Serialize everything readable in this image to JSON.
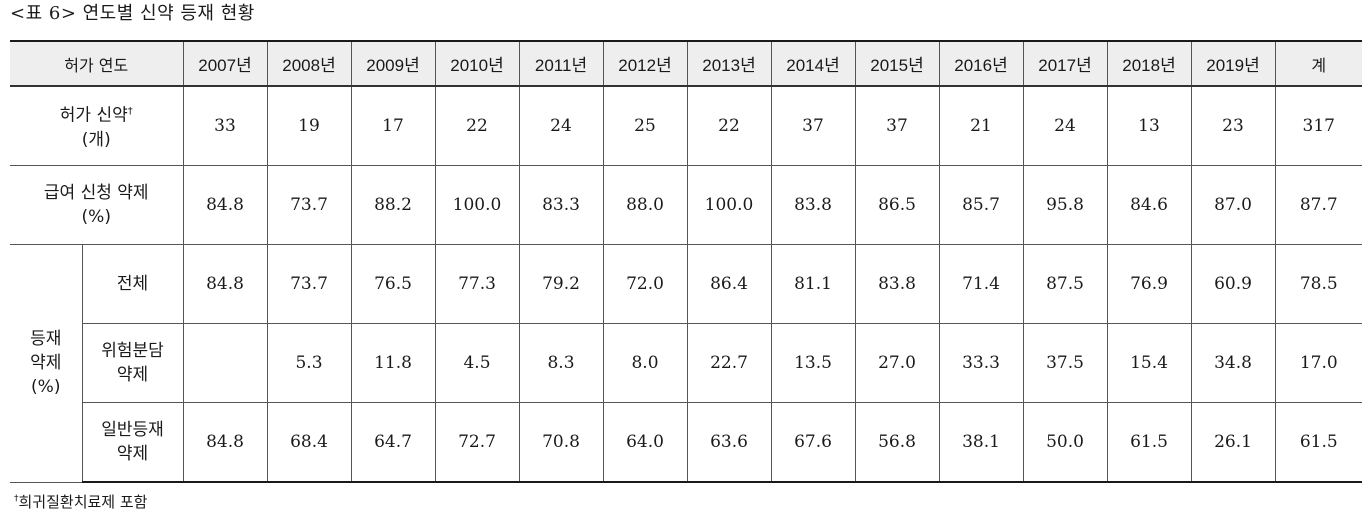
{
  "title": "<표 6> 연도별 신약 등재 현황",
  "header": {
    "label": "허가 연도",
    "years": [
      "2007년",
      "2008년",
      "2009년",
      "2010년",
      "2011년",
      "2012년",
      "2013년",
      "2014년",
      "2015년",
      "2016년",
      "2017년",
      "2018년",
      "2019년"
    ],
    "total": "계"
  },
  "rows": {
    "approved": {
      "label_line1": "허가 신약",
      "dagger": "†",
      "label_line2": "(개)",
      "values": [
        "33",
        "19",
        "17",
        "22",
        "24",
        "25",
        "22",
        "37",
        "37",
        "21",
        "24",
        "13",
        "23"
      ],
      "total": "317"
    },
    "claim": {
      "label_line1": "급여 신청 약제",
      "label_line2": "(%)",
      "values": [
        "84.8",
        "73.7",
        "88.2",
        "100.0",
        "83.3",
        "88.0",
        "100.0",
        "83.8",
        "86.5",
        "85.7",
        "95.8",
        "84.6",
        "87.0"
      ],
      "total": "87.7"
    },
    "listed_group": {
      "label_line1": "등재",
      "label_line2": "약제",
      "label_line3": "(%)"
    },
    "all": {
      "label": "전체",
      "values": [
        "84.8",
        "73.7",
        "76.5",
        "77.3",
        "79.2",
        "72.0",
        "86.4",
        "81.1",
        "83.8",
        "71.4",
        "87.5",
        "76.9",
        "60.9"
      ],
      "total": "78.5"
    },
    "risk": {
      "label_line1": "위험분담",
      "label_line2": "약제",
      "values": [
        "",
        "5.3",
        "11.8",
        "4.5",
        "8.3",
        "8.0",
        "22.7",
        "13.5",
        "27.0",
        "33.3",
        "37.5",
        "15.4",
        "34.8"
      ],
      "total": "17.0"
    },
    "general": {
      "label_line1": "일반등재",
      "label_line2": "약제",
      "values": [
        "84.8",
        "68.4",
        "64.7",
        "72.7",
        "70.8",
        "64.0",
        "63.6",
        "67.6",
        "56.8",
        "38.1",
        "50.0",
        "61.5",
        "26.1"
      ],
      "total": "61.5"
    }
  },
  "footnote": {
    "dagger": "†",
    "text": "희귀질환치료제 포함"
  }
}
